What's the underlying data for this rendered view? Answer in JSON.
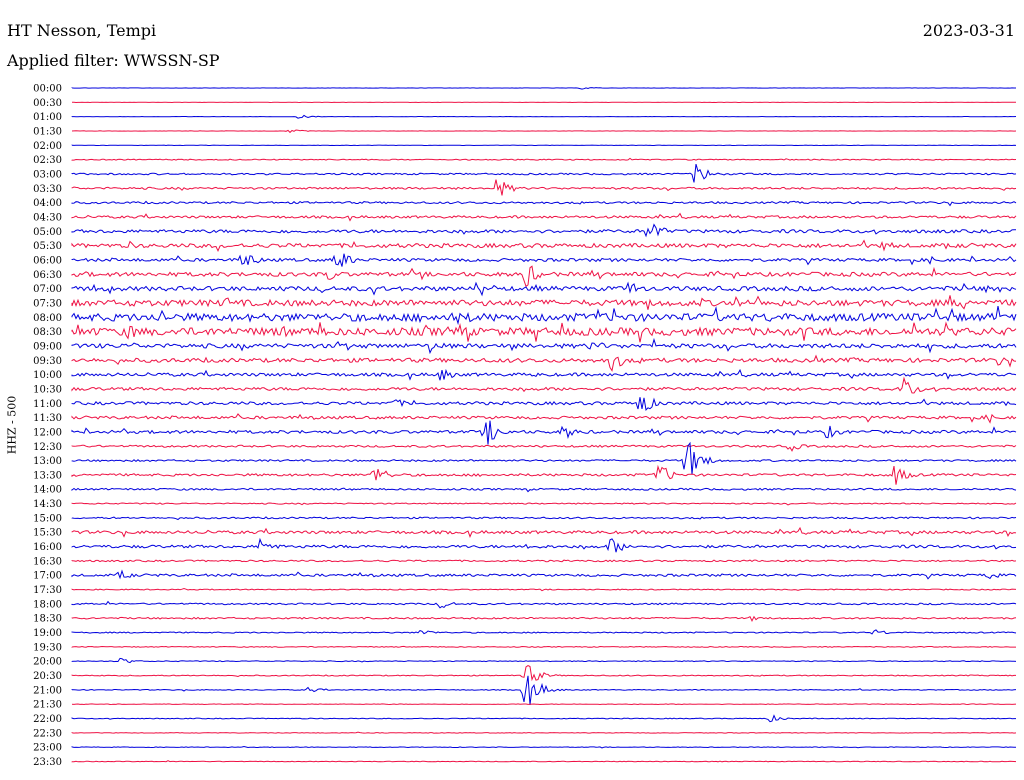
{
  "header": {
    "station": "HT Nesson, Tempi",
    "date": "2023-03-31",
    "filter": "Applied filter: WWSSN-SP"
  },
  "chart_data": {
    "type": "line",
    "title": "HT Nesson, Tempi",
    "ylabel": "HHZ - 500",
    "colors": [
      "#0000dd",
      "#ee1144"
    ],
    "rows": [
      "00:00",
      "00:30",
      "01:00",
      "01:30",
      "02:00",
      "02:30",
      "03:00",
      "03:30",
      "04:00",
      "04:30",
      "05:00",
      "05:30",
      "06:00",
      "06:30",
      "07:00",
      "07:30",
      "08:00",
      "08:30",
      "09:00",
      "09:30",
      "10:00",
      "10:30",
      "11:00",
      "11:30",
      "12:00",
      "12:30",
      "13:00",
      "13:30",
      "14:00",
      "14:30",
      "15:00",
      "15:30",
      "16:00",
      "16:30",
      "17:00",
      "17:30",
      "18:00",
      "18:30",
      "19:00",
      "19:30",
      "20:00",
      "20:30",
      "21:00",
      "21:30",
      "22:00",
      "22:30",
      "23:00",
      "23:30"
    ],
    "noise": [
      0.15,
      0.15,
      0.15,
      0.15,
      0.2,
      0.5,
      0.8,
      1.0,
      1.0,
      1.2,
      1.6,
      2.0,
      1.5,
      2.0,
      2.2,
      3.0,
      3.8,
      3.8,
      2.2,
      2.0,
      1.6,
      1.5,
      1.5,
      1.4,
      1.5,
      1.0,
      0.9,
      1.2,
      0.9,
      0.6,
      0.8,
      1.5,
      1.4,
      0.8,
      1.2,
      0.5,
      0.8,
      0.8,
      0.6,
      0.4,
      0.4,
      0.5,
      0.4,
      0.3,
      0.4,
      0.3,
      0.3,
      0.3
    ],
    "events": [
      {
        "row": "00:00",
        "t": 0.54,
        "amp": 1.5
      },
      {
        "row": "01:00",
        "t": 0.24,
        "amp": 2
      },
      {
        "row": "01:30",
        "t": 0.23,
        "amp": 2
      },
      {
        "row": "03:00",
        "t": 0.66,
        "amp": 13
      },
      {
        "row": "03:30",
        "t": 0.45,
        "amp": 12
      },
      {
        "row": "05:00",
        "t": 0.61,
        "amp": 14
      },
      {
        "row": "05:30",
        "t": 0.86,
        "amp": 7
      },
      {
        "row": "05:30",
        "t": 0.06,
        "amp": 5
      },
      {
        "row": "06:00",
        "t": 0.18,
        "amp": 12
      },
      {
        "row": "06:00",
        "t": 0.28,
        "amp": 14
      },
      {
        "row": "06:00",
        "t": 0.91,
        "amp": 5
      },
      {
        "row": "06:30",
        "t": 0.27,
        "amp": 8
      },
      {
        "row": "06:30",
        "t": 0.48,
        "amp": 15
      },
      {
        "row": "07:00",
        "t": 0.02,
        "amp": 6
      },
      {
        "row": "07:00",
        "t": 0.59,
        "amp": 9
      },
      {
        "row": "07:00",
        "t": 0.97,
        "amp": 6
      },
      {
        "row": "07:30",
        "t": 0.16,
        "amp": 8
      },
      {
        "row": "08:00",
        "t": 0.4,
        "amp": 8
      },
      {
        "row": "08:30",
        "t": 0.06,
        "amp": 10
      },
      {
        "row": "09:00",
        "t": 0.38,
        "amp": 9
      },
      {
        "row": "09:00",
        "t": 0.55,
        "amp": 8
      },
      {
        "row": "09:30",
        "t": 0.57,
        "amp": 14
      },
      {
        "row": "09:30",
        "t": 0.98,
        "amp": 6
      },
      {
        "row": "10:00",
        "t": 0.39,
        "amp": 8
      },
      {
        "row": "10:30",
        "t": 0.88,
        "amp": 14
      },
      {
        "row": "11:00",
        "t": 0.34,
        "amp": 6
      },
      {
        "row": "11:00",
        "t": 0.6,
        "amp": 16
      },
      {
        "row": "11:30",
        "t": 0.97,
        "amp": 6
      },
      {
        "row": "12:00",
        "t": 0.44,
        "amp": 15
      },
      {
        "row": "12:00",
        "t": 0.52,
        "amp": 9
      },
      {
        "row": "12:00",
        "t": 0.8,
        "amp": 8
      },
      {
        "row": "12:30",
        "t": 0.76,
        "amp": 6
      },
      {
        "row": "13:00",
        "t": 0.65,
        "amp": 28
      },
      {
        "row": "13:30",
        "t": 0.32,
        "amp": 12
      },
      {
        "row": "13:30",
        "t": 0.62,
        "amp": 14
      },
      {
        "row": "13:30",
        "t": 0.87,
        "amp": 13
      },
      {
        "row": "16:00",
        "t": 0.2,
        "amp": 10
      },
      {
        "row": "16:00",
        "t": 0.57,
        "amp": 11
      },
      {
        "row": "16:00",
        "t": 0.48,
        "amp": 5
      },
      {
        "row": "17:00",
        "t": 0.05,
        "amp": 6
      },
      {
        "row": "17:00",
        "t": 0.97,
        "amp": 5
      },
      {
        "row": "18:00",
        "t": 0.39,
        "amp": 5
      },
      {
        "row": "18:30",
        "t": 0.72,
        "amp": 3
      },
      {
        "row": "19:00",
        "t": 0.37,
        "amp": 4
      },
      {
        "row": "19:00",
        "t": 0.85,
        "amp": 4
      },
      {
        "row": "20:00",
        "t": 0.05,
        "amp": 4
      },
      {
        "row": "20:30",
        "t": 0.48,
        "amp": 14
      },
      {
        "row": "21:00",
        "t": 0.48,
        "amp": 24
      },
      {
        "row": "21:00",
        "t": 0.25,
        "amp": 3
      },
      {
        "row": "22:00",
        "t": 0.74,
        "amp": 4
      }
    ]
  }
}
